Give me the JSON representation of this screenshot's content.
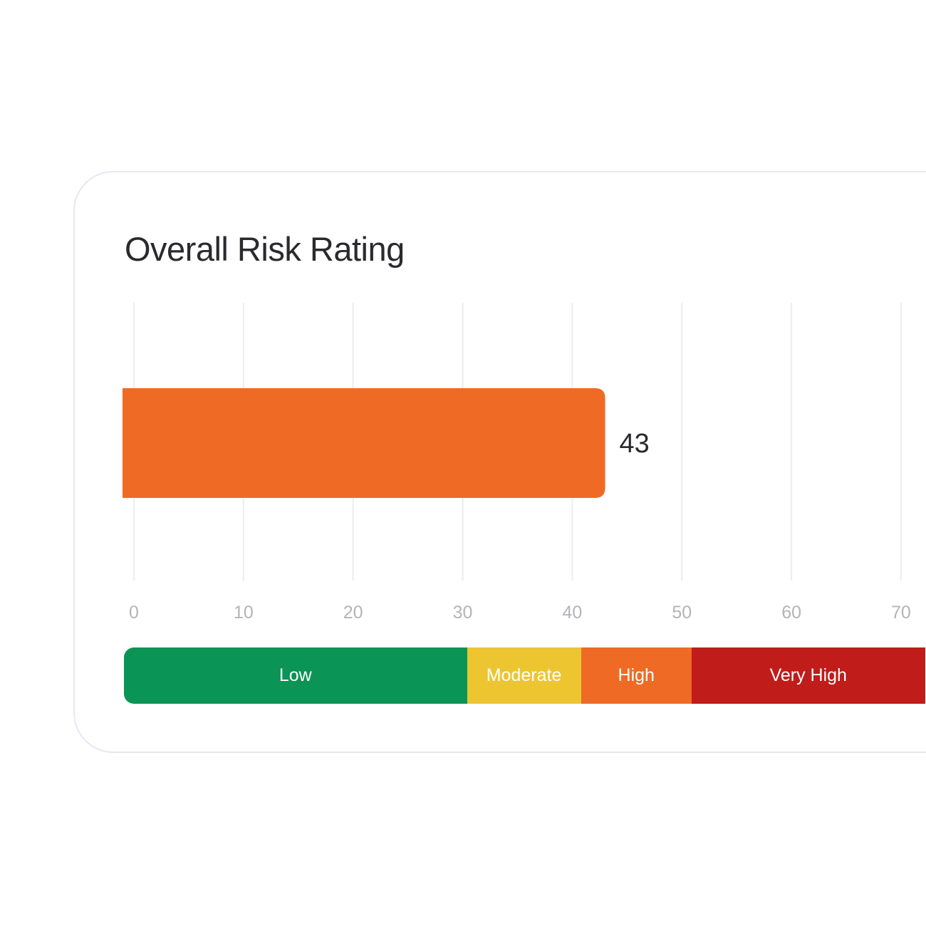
{
  "card": {
    "title": "Overall Risk Rating"
  },
  "chart_data": {
    "type": "bar",
    "orientation": "horizontal",
    "title": "Overall Risk Rating",
    "values": [
      43
    ],
    "value_labels": [
      "43"
    ],
    "bar_color": "#ef6a24",
    "xlim": [
      0,
      70
    ],
    "x_ticks": [
      0,
      10,
      20,
      30,
      40,
      50,
      60,
      70
    ],
    "x_tick_labels": [
      "0",
      "10",
      "20",
      "30",
      "40",
      "50",
      "60",
      "70"
    ],
    "grid": true,
    "xlabel": "",
    "ylabel": ""
  },
  "legend": {
    "segments": [
      {
        "label": "Low",
        "color": "#0a9455",
        "from": 0,
        "to": 31.3
      },
      {
        "label": "Moderate",
        "color": "#edc531",
        "from": 31.3,
        "to": 41.7
      },
      {
        "label": "High",
        "color": "#ef6a24",
        "from": 41.7,
        "to": 51.8
      },
      {
        "label": "Very High",
        "color": "#c01c1a",
        "from": 51.8,
        "to": 73.1
      }
    ]
  }
}
